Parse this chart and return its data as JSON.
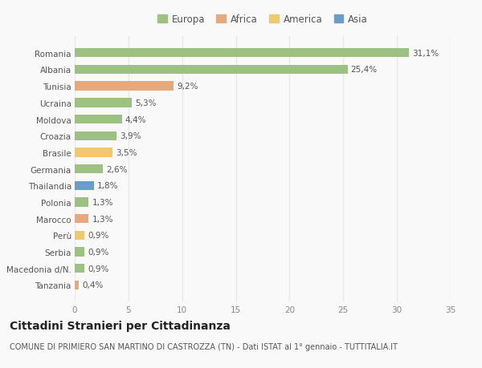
{
  "countries": [
    "Romania",
    "Albania",
    "Tunisia",
    "Ucraina",
    "Moldova",
    "Croazia",
    "Brasile",
    "Germania",
    "Thailandia",
    "Polonia",
    "Marocco",
    "Perù",
    "Serbia",
    "Macedonia d/N.",
    "Tanzania"
  ],
  "values": [
    31.1,
    25.4,
    9.2,
    5.3,
    4.4,
    3.9,
    3.5,
    2.6,
    1.8,
    1.3,
    1.3,
    0.9,
    0.9,
    0.9,
    0.4
  ],
  "labels": [
    "31,1%",
    "25,4%",
    "9,2%",
    "5,3%",
    "4,4%",
    "3,9%",
    "3,5%",
    "2,6%",
    "1,8%",
    "1,3%",
    "1,3%",
    "0,9%",
    "0,9%",
    "0,9%",
    "0,4%"
  ],
  "continents": [
    "Europa",
    "Europa",
    "Africa",
    "Europa",
    "Europa",
    "Europa",
    "America",
    "Europa",
    "Asia",
    "Europa",
    "Africa",
    "America",
    "Europa",
    "Europa",
    "Africa"
  ],
  "continent_colors": {
    "Europa": "#9dc183",
    "Africa": "#e8a87c",
    "America": "#f0c96e",
    "Asia": "#6b9ec7"
  },
  "legend_order": [
    "Europa",
    "Africa",
    "America",
    "Asia"
  ],
  "title": "Cittadini Stranieri per Cittadinanza",
  "subtitle": "COMUNE DI PRIMIERO SAN MARTINO DI CASTROZZA (TN) - Dati ISTAT al 1° gennaio - TUTTITALIA.IT",
  "xlim": [
    0,
    35
  ],
  "xticks": [
    0,
    5,
    10,
    15,
    20,
    25,
    30,
    35
  ],
  "background_color": "#f9f9f9",
  "grid_color": "#e8e8e8",
  "bar_height": 0.55,
  "title_fontsize": 10,
  "subtitle_fontsize": 7,
  "label_fontsize": 7.5,
  "tick_fontsize": 7.5,
  "legend_fontsize": 8.5
}
